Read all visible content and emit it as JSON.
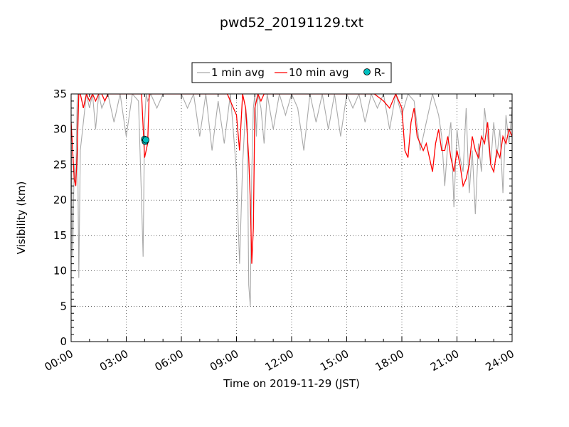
{
  "chart_data": {
    "type": "line",
    "title": "pwd52_20191129.txt",
    "xlabel": "Time on 2019-11-29 (JST)",
    "ylabel": "Visibility (km)",
    "xlim": [
      "2019-11-29 00:00",
      "2019-11-30 00:00"
    ],
    "ylim": [
      0,
      35
    ],
    "x_ticks": [
      "00:00",
      "03:00",
      "06:00",
      "09:00",
      "12:00",
      "15:00",
      "18:00",
      "21:00",
      "24:00"
    ],
    "y_ticks": [
      "0",
      "5",
      "10",
      "15",
      "20",
      "25",
      "30",
      "35"
    ],
    "grid": true,
    "legend": "top-center",
    "colors": {
      "one_min": "#a9a9a9",
      "ten_min": "#ff0000",
      "rain_light": "#00bfbf"
    },
    "series": [
      {
        "name": "1 min avg",
        "style": "line",
        "x": [
          "00:00",
          "00:05",
          "00:10",
          "00:15",
          "00:20",
          "00:25",
          "00:30",
          "00:40",
          "00:50",
          "01:00",
          "01:10",
          "01:20",
          "01:30",
          "01:40",
          "02:00",
          "02:20",
          "02:40",
          "03:00",
          "03:20",
          "03:40",
          "03:50",
          "03:55",
          "04:00",
          "04:05",
          "04:10",
          "04:20",
          "04:40",
          "05:00",
          "05:20",
          "05:40",
          "06:00",
          "06:20",
          "06:40",
          "07:00",
          "07:20",
          "07:40",
          "08:00",
          "08:20",
          "08:40",
          "09:00",
          "09:10",
          "09:20",
          "09:30",
          "09:35",
          "09:40",
          "09:45",
          "09:50",
          "09:55",
          "10:00",
          "10:05",
          "10:10",
          "10:20",
          "10:30",
          "10:40",
          "11:00",
          "11:20",
          "11:40",
          "12:00",
          "12:20",
          "12:40",
          "13:00",
          "13:20",
          "13:40",
          "14:00",
          "14:20",
          "14:40",
          "15:00",
          "15:20",
          "15:40",
          "16:00",
          "16:20",
          "16:40",
          "17:00",
          "17:20",
          "17:40",
          "18:00",
          "18:20",
          "18:40",
          "19:00",
          "19:20",
          "19:40",
          "20:00",
          "20:10",
          "20:20",
          "20:30",
          "20:40",
          "20:50",
          "21:00",
          "21:10",
          "21:20",
          "21:30",
          "21:40",
          "21:50",
          "22:00",
          "22:10",
          "22:20",
          "22:30",
          "22:40",
          "22:50",
          "23:00",
          "23:10",
          "23:20",
          "23:30",
          "23:40",
          "23:50",
          "24:00"
        ],
        "y": [
          30,
          12,
          25,
          22,
          35,
          9,
          27,
          31,
          35,
          33,
          35,
          30,
          35,
          33,
          35,
          31,
          35,
          29,
          35,
          34,
          20,
          12,
          31,
          35,
          34,
          35,
          33,
          35,
          35,
          35,
          35,
          33,
          35,
          29,
          35,
          27,
          34,
          28,
          35,
          24,
          11,
          25,
          33,
          31,
          8,
          5,
          24,
          33,
          35,
          29,
          35,
          33,
          28,
          35,
          30,
          35,
          32,
          35,
          33,
          27,
          35,
          31,
          35,
          30,
          35,
          29,
          35,
          33,
          35,
          31,
          35,
          33,
          35,
          30,
          35,
          32,
          35,
          34,
          27,
          31,
          35,
          32,
          29,
          22,
          28,
          31,
          19,
          30,
          26,
          24,
          33,
          21,
          27,
          18,
          28,
          24,
          33,
          29,
          25,
          31,
          26,
          30,
          21,
          32,
          28,
          33
        ]
      },
      {
        "name": "10 min avg",
        "style": "line",
        "x": [
          "00:00",
          "00:10",
          "00:15",
          "00:20",
          "00:25",
          "00:30",
          "00:35",
          "00:40",
          "00:50",
          "01:00",
          "01:10",
          "01:20",
          "01:30",
          "01:40",
          "01:50",
          "02:00",
          "02:30",
          "03:00",
          "03:30",
          "03:50",
          "04:00",
          "04:10",
          "04:15",
          "04:20",
          "04:30",
          "05:00",
          "05:30",
          "06:00",
          "06:30",
          "07:00",
          "07:30",
          "08:00",
          "08:30",
          "09:00",
          "09:10",
          "09:20",
          "09:30",
          "09:40",
          "09:45",
          "09:50",
          "09:55",
          "10:00",
          "10:10",
          "10:20",
          "10:30",
          "10:40",
          "11:00",
          "11:30",
          "12:00",
          "12:30",
          "13:00",
          "13:30",
          "14:00",
          "14:30",
          "15:00",
          "15:30",
          "16:00",
          "16:30",
          "17:00",
          "17:20",
          "17:40",
          "18:00",
          "18:10",
          "18:20",
          "18:30",
          "18:40",
          "18:50",
          "19:00",
          "19:10",
          "19:20",
          "19:30",
          "19:40",
          "19:50",
          "20:00",
          "20:10",
          "20:20",
          "20:30",
          "20:40",
          "20:50",
          "21:00",
          "21:10",
          "21:20",
          "21:30",
          "21:40",
          "21:50",
          "22:00",
          "22:10",
          "22:20",
          "22:30",
          "22:40",
          "22:50",
          "23:00",
          "23:10",
          "23:20",
          "23:30",
          "23:40",
          "23:50",
          "24:00"
        ],
        "y": [
          31,
          23,
          22,
          27,
          35,
          35,
          34,
          33,
          35,
          34,
          35,
          34,
          35,
          35,
          34,
          35,
          35,
          35,
          35,
          35,
          26,
          28,
          35,
          35,
          35,
          35,
          35,
          35,
          35,
          35,
          35,
          35,
          35,
          32,
          27,
          35,
          33,
          26,
          20,
          11,
          16,
          33,
          35,
          34,
          35,
          35,
          35,
          35,
          35,
          35,
          35,
          35,
          35,
          35,
          35,
          35,
          35,
          35,
          34,
          33,
          35,
          33,
          27,
          26,
          31,
          33,
          29,
          28,
          27,
          28,
          26,
          24,
          28,
          30,
          27,
          27,
          29,
          26,
          24,
          27,
          25,
          22,
          23,
          25,
          29,
          27,
          26,
          29,
          28,
          31,
          25,
          24,
          27,
          26,
          29,
          28,
          30,
          29
        ]
      },
      {
        "name": "R-",
        "style": "scatter",
        "x": [
          "04:00",
          "04:02",
          "04:04"
        ],
        "y": [
          28.6,
          28.3,
          28.5
        ]
      }
    ]
  }
}
